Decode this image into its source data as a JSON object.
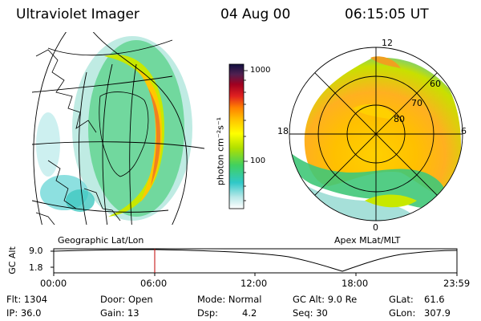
{
  "header": {
    "title": "Ultraviolet Imager",
    "date": "04 Aug 00",
    "time": "06:15:05 UT"
  },
  "left_map": {
    "caption": "Geographic Lat/Lon"
  },
  "right_map": {
    "caption": "Apex MLat/MLT",
    "mlt_labels": [
      "12",
      "18",
      "6",
      "0"
    ],
    "lat_labels": [
      "60",
      "70",
      "80"
    ]
  },
  "colorbar": {
    "label": "photon cm⁻²s⁻¹",
    "ticks": [
      "1000",
      "100"
    ]
  },
  "altitude_plot": {
    "ylabel": "GC Alt",
    "y_ticks": [
      "9.0",
      "1.8"
    ],
    "x_ticks": [
      "00:00",
      "06:00",
      "12:00",
      "18:00",
      "23:59"
    ]
  },
  "info": {
    "flt": "Flt: 1304",
    "ip": "IP: 36.0",
    "door": "Door: Open",
    "gain": "Gain: 13",
    "mode": "Mode: Normal",
    "dsp": "Dsp:",
    "dsp_value": "4.2",
    "gcalt": "GC Alt: 9.0 Re",
    "seq": "Seq: 30",
    "glat": "GLat:",
    "glat_value": "61.6",
    "glon": "GLon:",
    "glon_value": "307.9"
  },
  "colors": {
    "marker": "#c00000",
    "ink": "#000000"
  }
}
